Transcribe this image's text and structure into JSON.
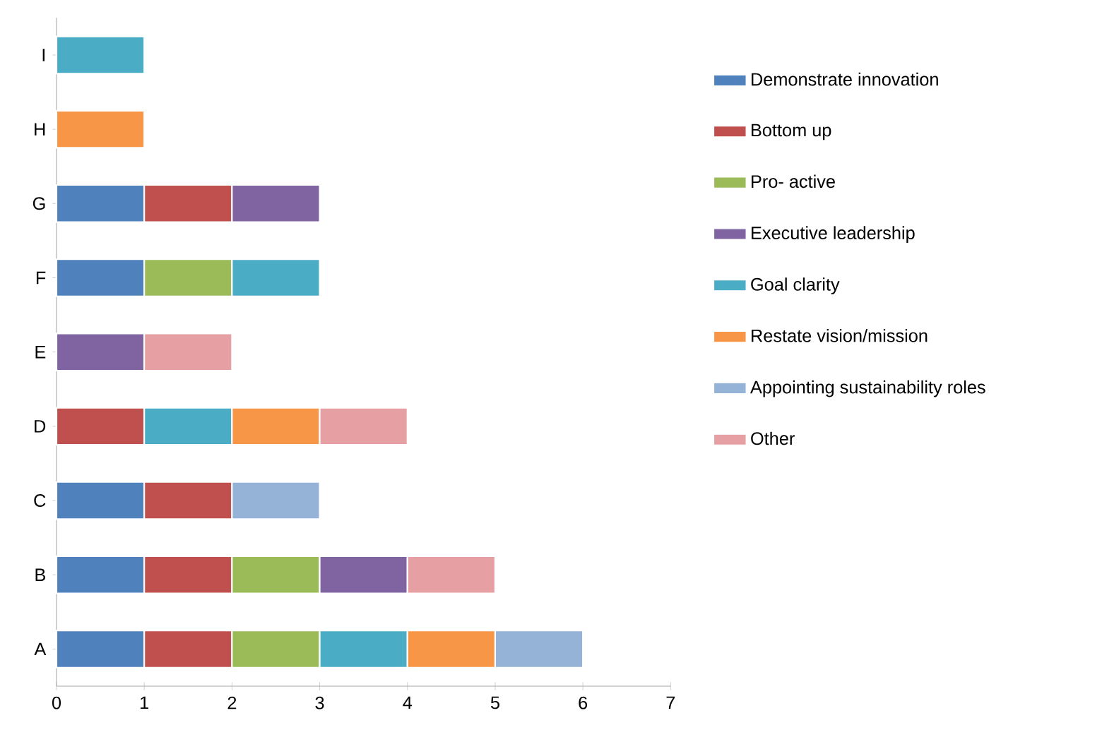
{
  "chart_data": {
    "type": "bar",
    "orientation": "horizontal",
    "stacked": true,
    "categories": [
      "I",
      "H",
      "G",
      "F",
      "E",
      "D",
      "C",
      "B",
      "A"
    ],
    "xlim": [
      0,
      7
    ],
    "xticks": [
      0,
      1,
      2,
      3,
      4,
      5,
      6,
      7
    ],
    "legend": "right",
    "grid": false,
    "series": [
      {
        "name": "Demonstrate innovation",
        "color": "#4f81bd",
        "values": [
          null,
          null,
          1,
          1,
          null,
          null,
          1,
          1,
          1
        ]
      },
      {
        "name": "Bottom up",
        "color": "#c0504d",
        "values": [
          null,
          null,
          1,
          null,
          null,
          1,
          1,
          1,
          1
        ]
      },
      {
        "name": "Pro- active",
        "color": "#9bbb59",
        "values": [
          null,
          null,
          null,
          1,
          null,
          null,
          null,
          1,
          1
        ]
      },
      {
        "name": "Executive leadership",
        "color": "#8064a2",
        "values": [
          null,
          null,
          1,
          null,
          1,
          null,
          null,
          1,
          null
        ]
      },
      {
        "name": "Goal clarity",
        "color": "#4bacc6",
        "values": [
          1,
          null,
          null,
          1,
          null,
          1,
          null,
          null,
          1
        ]
      },
      {
        "name": "Restate vision/mission",
        "color": "#f79646",
        "values": [
          null,
          1,
          null,
          null,
          null,
          1,
          null,
          null,
          1
        ]
      },
      {
        "name": "Appointing sustainability roles",
        "color": "#95b3d7",
        "values": [
          null,
          null,
          null,
          null,
          null,
          null,
          1,
          null,
          1
        ]
      },
      {
        "name": "Other",
        "color": "#e6a0a3",
        "values": [
          null,
          null,
          null,
          null,
          1,
          1,
          null,
          1,
          null
        ]
      }
    ]
  }
}
